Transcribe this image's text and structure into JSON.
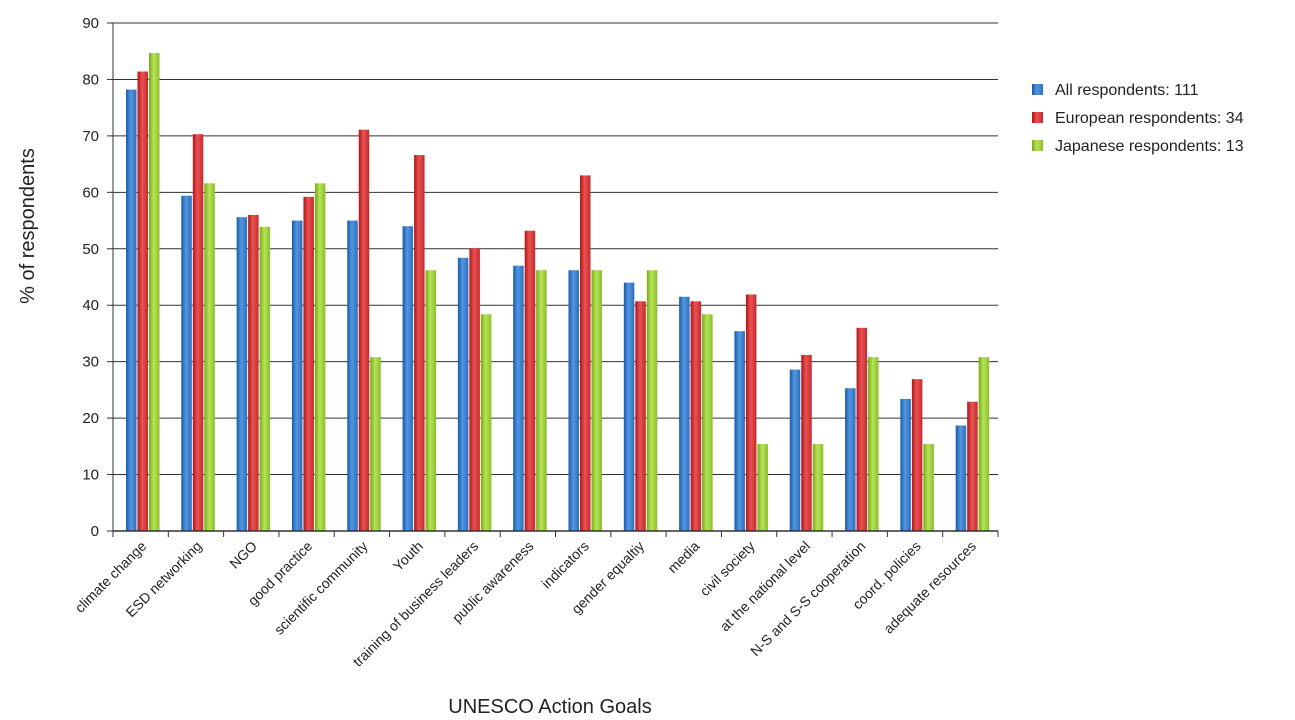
{
  "chart_data": {
    "type": "bar",
    "title": "",
    "xlabel": "UNESCO Action Goals",
    "ylabel": "% of respondents",
    "ylim": [
      0,
      90
    ],
    "yticks": [
      0,
      10,
      20,
      30,
      40,
      50,
      60,
      70,
      80,
      90
    ],
    "grid": true,
    "legend_position": "right",
    "categories": [
      "climate change",
      "ESD networking",
      "NGO",
      "good practice",
      "scientific community",
      "Youth",
      "training of business leaders",
      "public awareness",
      "indicators",
      "gender equaltiy",
      "media",
      "civil society",
      "at the national level",
      "N-S and S-S cooperation",
      "coord. policies",
      "adequate resources"
    ],
    "series": [
      {
        "name": "All respondents: 111",
        "color": "#3a7dc9",
        "values": [
          78.2,
          59.4,
          55.6,
          55.0,
          55.0,
          54.0,
          48.4,
          47.0,
          46.2,
          44.0,
          41.5,
          35.4,
          28.6,
          25.3,
          23.4,
          18.7
        ]
      },
      {
        "name": "European respondents: 34",
        "color": "#d2393a",
        "values": [
          81.4,
          70.3,
          56.0,
          59.2,
          71.1,
          66.6,
          50.1,
          53.2,
          63.0,
          40.7,
          40.7,
          41.9,
          31.2,
          36.0,
          26.9,
          22.9
        ]
      },
      {
        "name": "Japanese respondents: 13",
        "color": "#9ccb3c",
        "values": [
          84.7,
          61.6,
          53.9,
          61.6,
          30.8,
          46.2,
          38.4,
          46.2,
          46.2,
          46.2,
          38.4,
          15.4,
          15.4,
          30.8,
          15.4,
          30.8
        ]
      }
    ]
  }
}
